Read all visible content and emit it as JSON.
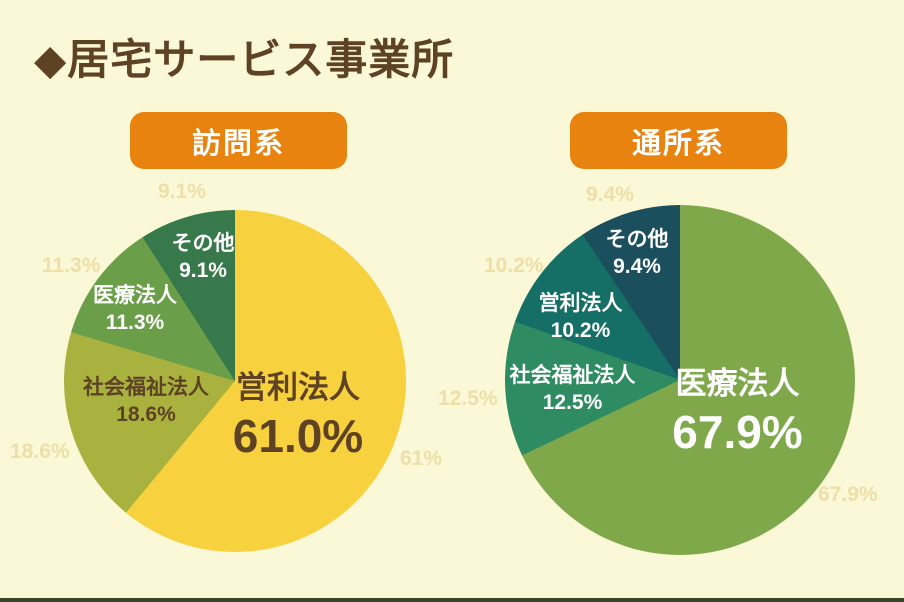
{
  "page": {
    "title": "◆居宅サービス事業所",
    "background_color": "#FBF8D7",
    "title_color": "#5D4223",
    "badge_color": "#E8830F"
  },
  "chart_data": [
    {
      "type": "pie",
      "group_label": "訪問系",
      "labels": [
        "営利法人",
        "社会福祉法人",
        "医療法人",
        "その他"
      ],
      "values": [
        61.0,
        18.6,
        11.3,
        9.1
      ],
      "value_labels": [
        "61.0%",
        "18.6%",
        "11.3%",
        "9.1%"
      ],
      "colors": [
        "#F8D13E",
        "#A9B13F",
        "#6A9E49",
        "#37794A"
      ],
      "label_text_colors": [
        "#5D4223",
        "#5D4223",
        "#FFFFFF",
        "#FFFFFF"
      ],
      "start_angle": "12-oclock",
      "direction": "clockwise",
      "watermarks": [
        "9.1%",
        "11.3%",
        "18.6%",
        "61%"
      ]
    },
    {
      "type": "pie",
      "group_label": "通所系",
      "labels": [
        "医療法人",
        "社会福祉法人",
        "営利法人",
        "その他"
      ],
      "values": [
        67.9,
        12.5,
        10.2,
        9.4
      ],
      "value_labels": [
        "67.9%",
        "12.5%",
        "10.2%",
        "9.4%"
      ],
      "colors": [
        "#7FA84B",
        "#2E8B62",
        "#156F66",
        "#1C4F5D"
      ],
      "label_text_colors": [
        "#FFFFFF",
        "#FFFFFF",
        "#FFFFFF",
        "#FFFFFF"
      ],
      "start_angle": "12-oclock",
      "direction": "clockwise",
      "watermarks": [
        "9.4%",
        "10.2%",
        "12.5%",
        "67.9%"
      ]
    }
  ]
}
